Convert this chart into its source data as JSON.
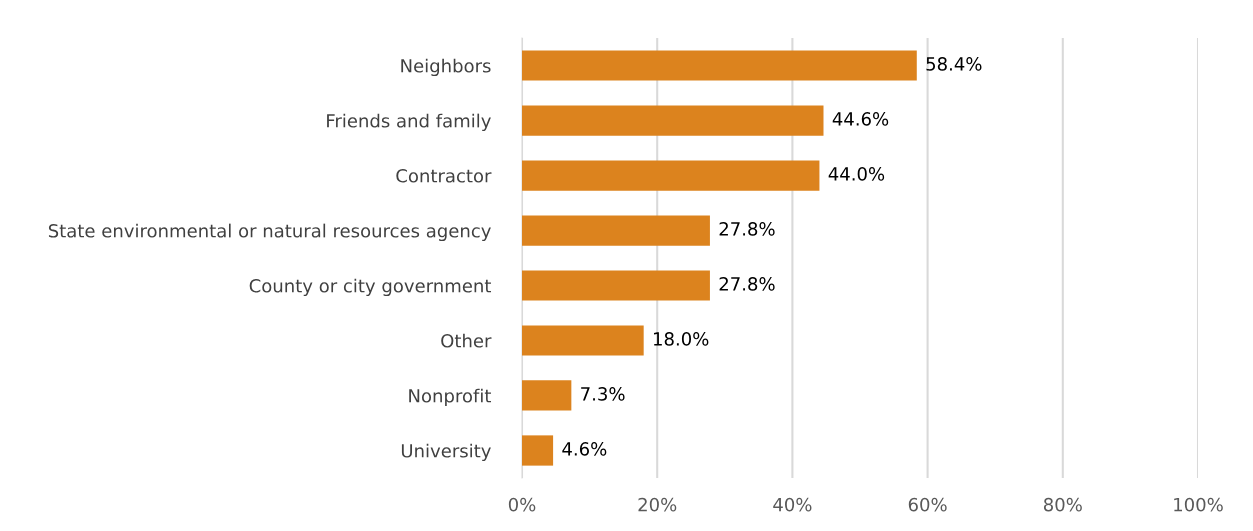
{
  "chart_data": {
    "type": "bar",
    "orientation": "horizontal",
    "categories": [
      "Neighbors",
      "Friends and family",
      "Contractor",
      "State environmental or natural resources agency",
      "County or city government",
      "Other",
      "Nonprofit",
      "University"
    ],
    "values": [
      58.4,
      44.6,
      44.0,
      27.8,
      27.8,
      18.0,
      7.3,
      4.6
    ],
    "value_labels": [
      "58.4%",
      "44.6%",
      "44.0%",
      "27.8%",
      "27.8%",
      "18.0%",
      "7.3%",
      "4.6%"
    ],
    "color": "#dc831e",
    "xlim": [
      0,
      100
    ],
    "xticks": [
      {
        "value": 0,
        "label": "0%"
      },
      {
        "value": 20,
        "label": "20%"
      },
      {
        "value": 40,
        "label": "40%"
      },
      {
        "value": 60,
        "label": "60%"
      },
      {
        "value": 80,
        "label": "80%"
      },
      {
        "value": 100,
        "label": "100%"
      }
    ],
    "grid": "x",
    "legend": false
  }
}
